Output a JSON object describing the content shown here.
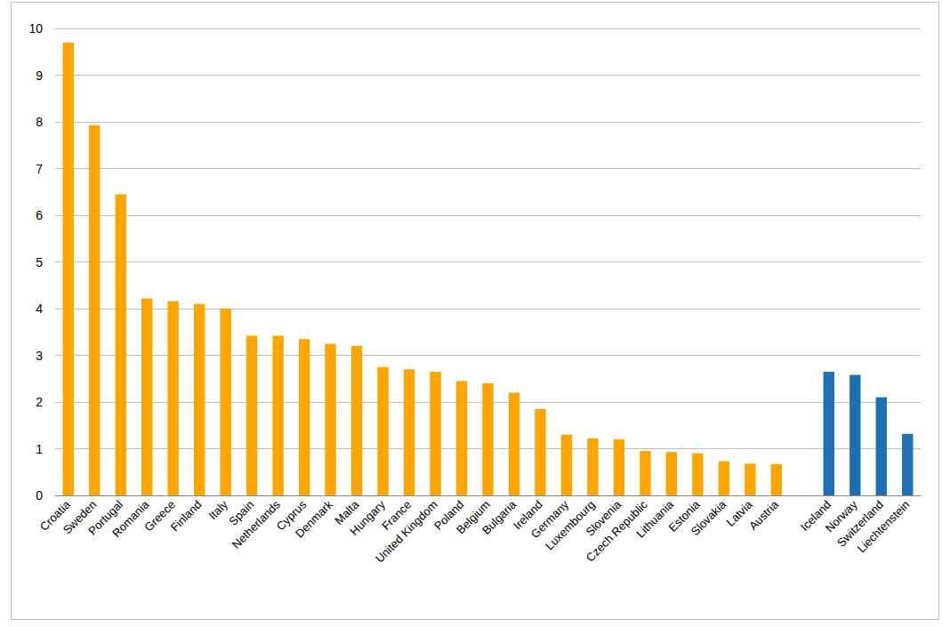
{
  "chart_data": {
    "type": "bar",
    "categories": [
      "Croatia",
      "Sweden",
      "Portugal",
      "Romania",
      "Greece",
      "Finland",
      "Italy",
      "Spain",
      "Netherlands",
      "Cyprus",
      "Denmark",
      "Malta",
      "Hungary",
      "France",
      "United Kingdom",
      "Poland",
      "Belgium",
      "Bulgaria",
      "Ireland",
      "Germany",
      "Luxembourg",
      "Slovenia",
      "Czech Republic",
      "Lithuania",
      "Estonia",
      "Slovakia",
      "Latvia",
      "Austria",
      null,
      "Iceland",
      "Norway",
      "Switzerland",
      "Liechtenstein"
    ],
    "values": [
      9.7,
      7.93,
      6.45,
      4.22,
      4.16,
      4.1,
      4.0,
      3.42,
      3.42,
      3.35,
      3.25,
      3.2,
      2.75,
      2.7,
      2.65,
      2.45,
      2.4,
      2.2,
      1.85,
      1.3,
      1.22,
      1.2,
      0.95,
      0.93,
      0.9,
      0.73,
      0.68,
      0.67,
      null,
      2.65,
      2.58,
      2.1,
      1.32
    ],
    "colors": [
      "#ffa500",
      "#ffa500",
      "#ffa500",
      "#ffa500",
      "#ffa500",
      "#ffa500",
      "#ffa500",
      "#ffa500",
      "#ffa500",
      "#ffa500",
      "#ffa500",
      "#ffa500",
      "#ffa500",
      "#ffa500",
      "#ffa500",
      "#ffa500",
      "#ffa500",
      "#ffa500",
      "#ffa500",
      "#ffa500",
      "#ffa500",
      "#ffa500",
      "#ffa500",
      "#ffa500",
      "#ffa500",
      "#ffa500",
      "#ffa500",
      "#ffa500",
      null,
      "#1f6fb5",
      "#1f6fb5",
      "#1f6fb5",
      "#1f6fb5"
    ],
    "ylim": [
      0,
      10
    ],
    "yticks": [
      0,
      1,
      2,
      3,
      4,
      5,
      6,
      7,
      8,
      9,
      10
    ],
    "grid": true
  }
}
